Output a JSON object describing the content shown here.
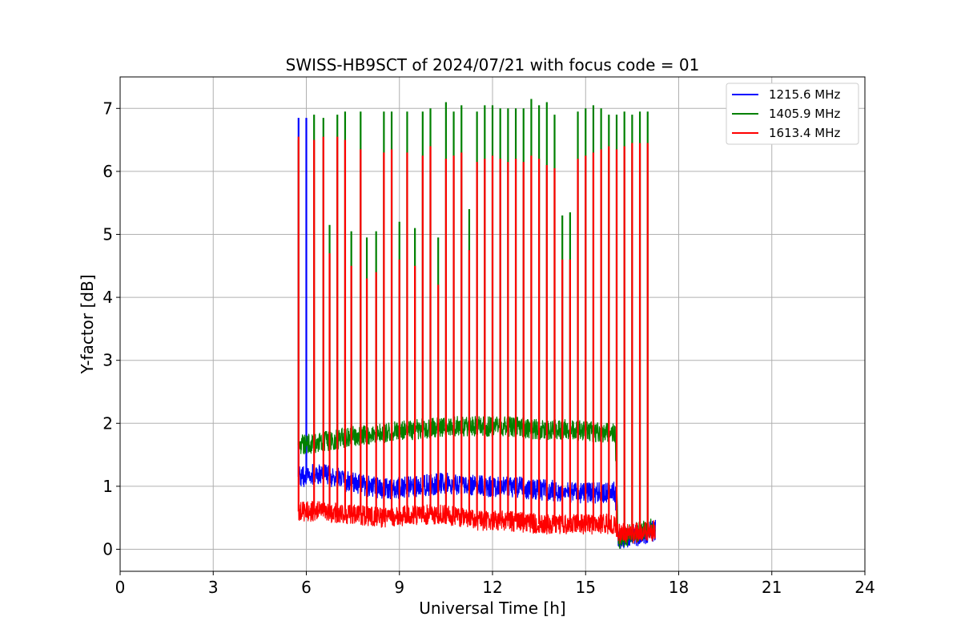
{
  "chart_data": {
    "type": "line",
    "title": "SWISS-HB9SCT of 2024/07/21 with focus code = 01",
    "xlabel": "Universal Time [h]",
    "ylabel": "Y-factor [dB]",
    "xlim": [
      0,
      24
    ],
    "ylim": [
      -0.35,
      7.5
    ],
    "xticks": [
      0,
      3,
      6,
      9,
      12,
      15,
      18,
      21,
      24
    ],
    "yticks": [
      0,
      1,
      2,
      3,
      4,
      5,
      6,
      7
    ],
    "grid": true,
    "legend_position": "top-right",
    "series": [
      {
        "name": "1215.6 MHz",
        "color": "#0000ff",
        "baseline": [
          [
            5.75,
            1.15
          ],
          [
            6.5,
            1.2
          ],
          [
            7.5,
            1.05
          ],
          [
            8.5,
            0.95
          ],
          [
            9.5,
            1.0
          ],
          [
            10.5,
            1.05
          ],
          [
            11.5,
            1.0
          ],
          [
            12.5,
            1.0
          ],
          [
            13.5,
            0.95
          ],
          [
            14.5,
            0.9
          ],
          [
            15.5,
            0.9
          ],
          [
            15.95,
            0.9
          ],
          [
            16.05,
            0.15
          ],
          [
            16.5,
            0.2
          ],
          [
            17.25,
            0.3
          ]
        ],
        "noise": 0.17,
        "spikes": [
          [
            5.75,
            6.85
          ],
          [
            6.0,
            6.85
          ]
        ]
      },
      {
        "name": "1405.9 MHz",
        "color": "#008000",
        "baseline": [
          [
            5.75,
            1.65
          ],
          [
            6.5,
            1.7
          ],
          [
            7.5,
            1.8
          ],
          [
            8.5,
            1.85
          ],
          [
            9.5,
            1.9
          ],
          [
            10.5,
            1.95
          ],
          [
            11.5,
            1.95
          ],
          [
            12.5,
            1.95
          ],
          [
            13.5,
            1.9
          ],
          [
            14.5,
            1.9
          ],
          [
            15.5,
            1.85
          ],
          [
            15.95,
            1.85
          ],
          [
            16.05,
            0.15
          ],
          [
            16.5,
            0.25
          ],
          [
            17.25,
            0.35
          ]
        ],
        "noise": 0.16,
        "spikes": [
          [
            5.75,
            6.5
          ],
          [
            6.25,
            6.9
          ],
          [
            6.55,
            6.85
          ],
          [
            6.75,
            5.15
          ],
          [
            7.0,
            6.9
          ],
          [
            7.25,
            6.95
          ],
          [
            7.45,
            5.05
          ],
          [
            7.75,
            6.95
          ],
          [
            7.95,
            4.95
          ],
          [
            8.25,
            5.05
          ],
          [
            8.5,
            6.95
          ],
          [
            8.75,
            6.95
          ],
          [
            9.0,
            5.2
          ],
          [
            9.25,
            6.95
          ],
          [
            9.5,
            5.1
          ],
          [
            9.75,
            6.95
          ],
          [
            10.0,
            7.0
          ],
          [
            10.25,
            4.95
          ],
          [
            10.5,
            7.1
          ],
          [
            10.75,
            6.95
          ],
          [
            11.0,
            7.05
          ],
          [
            11.25,
            5.4
          ],
          [
            11.5,
            6.95
          ],
          [
            11.75,
            7.05
          ],
          [
            12.0,
            7.05
          ],
          [
            12.25,
            7.0
          ],
          [
            12.5,
            7.0
          ],
          [
            12.75,
            7.0
          ],
          [
            13.0,
            7.0
          ],
          [
            13.25,
            7.15
          ],
          [
            13.5,
            7.05
          ],
          [
            13.75,
            7.1
          ],
          [
            14.0,
            6.9
          ],
          [
            14.25,
            5.3
          ],
          [
            14.5,
            5.35
          ],
          [
            14.75,
            6.95
          ],
          [
            15.0,
            7.0
          ],
          [
            15.25,
            7.05
          ],
          [
            15.5,
            7.0
          ],
          [
            15.75,
            6.9
          ],
          [
            16.0,
            6.9
          ],
          [
            16.25,
            6.95
          ],
          [
            16.5,
            6.9
          ],
          [
            16.75,
            6.95
          ],
          [
            17.0,
            6.95
          ]
        ]
      },
      {
        "name": "1613.4 MHz",
        "color": "#ff0000",
        "baseline": [
          [
            5.75,
            0.6
          ],
          [
            6.5,
            0.6
          ],
          [
            7.5,
            0.55
          ],
          [
            8.5,
            0.5
          ],
          [
            9.5,
            0.55
          ],
          [
            10.5,
            0.55
          ],
          [
            11.5,
            0.45
          ],
          [
            12.5,
            0.45
          ],
          [
            13.5,
            0.4
          ],
          [
            14.5,
            0.4
          ],
          [
            15.5,
            0.4
          ],
          [
            15.95,
            0.4
          ],
          [
            16.05,
            0.25
          ],
          [
            16.5,
            0.25
          ],
          [
            17.25,
            0.3
          ]
        ],
        "noise": 0.16,
        "spikes": [
          [
            5.75,
            6.55
          ],
          [
            6.25,
            6.5
          ],
          [
            6.55,
            6.55
          ],
          [
            6.75,
            4.7
          ],
          [
            7.0,
            6.55
          ],
          [
            7.25,
            6.5
          ],
          [
            7.45,
            4.5
          ],
          [
            7.75,
            6.35
          ],
          [
            7.95,
            4.3
          ],
          [
            8.25,
            4.4
          ],
          [
            8.5,
            6.3
          ],
          [
            8.75,
            6.35
          ],
          [
            9.0,
            4.6
          ],
          [
            9.25,
            6.3
          ],
          [
            9.5,
            4.5
          ],
          [
            9.75,
            6.25
          ],
          [
            10.0,
            6.4
          ],
          [
            10.25,
            4.2
          ],
          [
            10.5,
            6.2
          ],
          [
            10.75,
            6.25
          ],
          [
            11.0,
            6.3
          ],
          [
            11.25,
            4.75
          ],
          [
            11.5,
            6.15
          ],
          [
            11.75,
            6.2
          ],
          [
            12.0,
            6.25
          ],
          [
            12.25,
            6.2
          ],
          [
            12.5,
            6.15
          ],
          [
            12.75,
            6.2
          ],
          [
            13.0,
            6.15
          ],
          [
            13.25,
            6.25
          ],
          [
            13.5,
            6.2
          ],
          [
            13.75,
            6.1
          ],
          [
            14.0,
            6.05
          ],
          [
            14.25,
            4.6
          ],
          [
            14.5,
            4.6
          ],
          [
            14.75,
            6.2
          ],
          [
            15.0,
            6.25
          ],
          [
            15.25,
            6.3
          ],
          [
            15.5,
            6.35
          ],
          [
            15.75,
            6.4
          ],
          [
            16.0,
            6.35
          ],
          [
            16.25,
            6.4
          ],
          [
            16.5,
            6.45
          ],
          [
            16.75,
            6.45
          ],
          [
            17.0,
            6.45
          ]
        ]
      }
    ]
  }
}
